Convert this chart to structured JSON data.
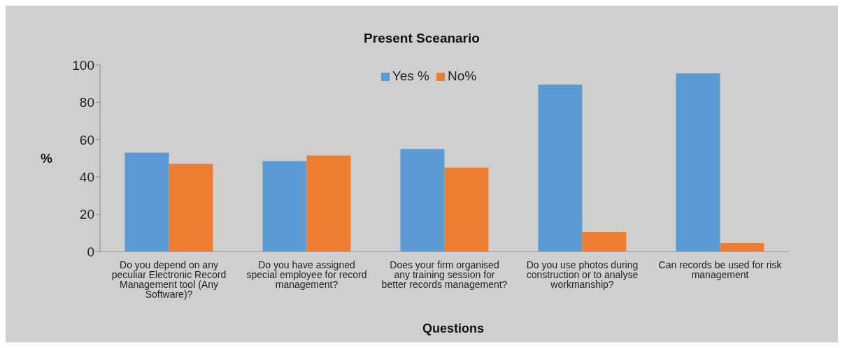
{
  "chart_data": {
    "type": "bar",
    "title": "Present Sceanario",
    "xlabel": "Questions",
    "ylabel": "%",
    "categories": [
      "Do you depend on any peculiar Electronic Record Management tool (Any Software)?",
      "Do you have assigned special employee for record management?",
      "Does your firm organised any training session for better records management?",
      "Do you use photos during construction or to analyse workmanship?",
      "Can records be used for risk management"
    ],
    "series": [
      {
        "name": "Yes %",
        "color": "#5b9bd5",
        "values": [
          53,
          48.5,
          55,
          89.5,
          95.5
        ]
      },
      {
        "name": "No%",
        "color": "#ed7d31",
        "values": [
          47,
          51.5,
          45,
          10.5,
          4.5
        ]
      }
    ],
    "ylim": [
      0,
      100
    ],
    "yticks": [
      0,
      20,
      40,
      60,
      80,
      100
    ],
    "grid": false,
    "legend": "top"
  }
}
